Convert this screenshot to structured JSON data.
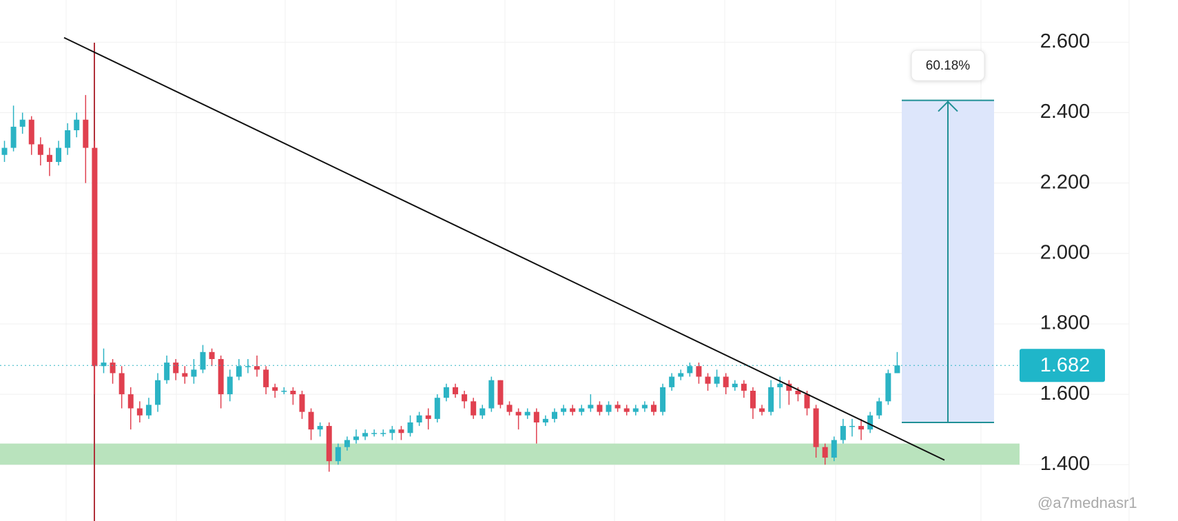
{
  "chart_data": {
    "type": "candlestick",
    "up_color": "#2bb3c4",
    "down_color": "#e0404f",
    "open": [
      2.28,
      2.3,
      2.36,
      2.38,
      2.31,
      2.28,
      2.26,
      2.3,
      2.35,
      2.38,
      2.3,
      1.68,
      1.69,
      1.66,
      1.6,
      1.56,
      1.54,
      1.57,
      1.64,
      1.69,
      1.66,
      1.65,
      1.67,
      1.72,
      1.7,
      1.6,
      1.65,
      1.68,
      1.68,
      1.67,
      1.62,
      1.61,
      1.61,
      1.6,
      1.55,
      1.5,
      1.51,
      1.41,
      1.45,
      1.47,
      1.48,
      1.49,
      1.49,
      1.49,
      1.5,
      1.49,
      1.52,
      1.54,
      1.53,
      1.59,
      1.62,
      1.6,
      1.58,
      1.54,
      1.56,
      1.64,
      1.57,
      1.55,
      1.54,
      1.55,
      1.52,
      1.53,
      1.55,
      1.56,
      1.55,
      1.56,
      1.57,
      1.55,
      1.57,
      1.56,
      1.55,
      1.56,
      1.57,
      1.55,
      1.62,
      1.65,
      1.66,
      1.68,
      1.65,
      1.63,
      1.65,
      1.62,
      1.63,
      1.61,
      1.56,
      1.55,
      1.62,
      1.63,
      1.61,
      1.6,
      1.56,
      1.45,
      1.42,
      1.47,
      1.51,
      1.51,
      1.5,
      1.54,
      1.58,
      1.66
    ],
    "high": [
      2.32,
      2.42,
      2.4,
      2.39,
      2.33,
      2.3,
      2.32,
      2.37,
      2.4,
      2.45,
      2.32,
      1.73,
      1.7,
      1.68,
      1.62,
      1.58,
      1.59,
      1.66,
      1.71,
      1.7,
      1.68,
      1.7,
      1.74,
      1.73,
      1.71,
      1.67,
      1.7,
      1.7,
      1.71,
      1.68,
      1.63,
      1.62,
      1.62,
      1.61,
      1.56,
      1.52,
      1.52,
      1.46,
      1.48,
      1.5,
      1.5,
      1.5,
      1.5,
      1.51,
      1.51,
      1.54,
      1.55,
      1.56,
      1.6,
      1.63,
      1.63,
      1.61,
      1.59,
      1.57,
      1.65,
      1.64,
      1.58,
      1.56,
      1.56,
      1.56,
      1.54,
      1.56,
      1.57,
      1.57,
      1.57,
      1.6,
      1.58,
      1.58,
      1.58,
      1.57,
      1.57,
      1.58,
      1.58,
      1.63,
      1.66,
      1.67,
      1.69,
      1.69,
      1.66,
      1.67,
      1.66,
      1.64,
      1.64,
      1.62,
      1.57,
      1.64,
      1.65,
      1.64,
      1.62,
      1.61,
      1.57,
      1.46,
      1.48,
      1.53,
      1.53,
      1.53,
      1.55,
      1.59,
      1.67,
      1.72
    ],
    "low": [
      2.26,
      2.29,
      2.34,
      2.28,
      2.25,
      2.22,
      2.25,
      2.28,
      2.33,
      2.2,
      1.6,
      1.66,
      1.63,
      1.56,
      1.5,
      1.52,
      1.53,
      1.55,
      1.63,
      1.64,
      1.63,
      1.63,
      1.66,
      1.68,
      1.56,
      1.58,
      1.64,
      1.66,
      1.65,
      1.6,
      1.59,
      1.6,
      1.57,
      1.53,
      1.47,
      1.48,
      1.38,
      1.4,
      1.44,
      1.46,
      1.47,
      1.48,
      1.48,
      1.47,
      1.47,
      1.48,
      1.51,
      1.5,
      1.52,
      1.58,
      1.59,
      1.56,
      1.53,
      1.53,
      1.55,
      1.56,
      1.54,
      1.5,
      1.53,
      1.46,
      1.51,
      1.52,
      1.54,
      1.54,
      1.54,
      1.55,
      1.54,
      1.54,
      1.55,
      1.54,
      1.54,
      1.55,
      1.54,
      1.54,
      1.61,
      1.64,
      1.65,
      1.63,
      1.61,
      1.62,
      1.6,
      1.61,
      1.59,
      1.53,
      1.54,
      1.54,
      1.56,
      1.57,
      1.58,
      1.54,
      1.42,
      1.4,
      1.41,
      1.46,
      1.48,
      1.47,
      1.49,
      1.53,
      1.57,
      1.66
    ],
    "close": [
      2.3,
      2.36,
      2.38,
      2.31,
      2.28,
      2.26,
      2.3,
      2.35,
      2.38,
      2.3,
      1.68,
      1.69,
      1.66,
      1.6,
      1.56,
      1.54,
      1.57,
      1.64,
      1.69,
      1.66,
      1.65,
      1.67,
      1.72,
      1.7,
      1.6,
      1.65,
      1.68,
      1.68,
      1.67,
      1.62,
      1.61,
      1.61,
      1.6,
      1.55,
      1.5,
      1.51,
      1.41,
      1.45,
      1.47,
      1.48,
      1.49,
      1.49,
      1.49,
      1.5,
      1.49,
      1.52,
      1.54,
      1.53,
      1.59,
      1.62,
      1.6,
      1.58,
      1.54,
      1.56,
      1.64,
      1.57,
      1.55,
      1.54,
      1.55,
      1.52,
      1.53,
      1.55,
      1.56,
      1.55,
      1.56,
      1.57,
      1.55,
      1.57,
      1.56,
      1.55,
      1.56,
      1.57,
      1.55,
      1.62,
      1.65,
      1.66,
      1.68,
      1.65,
      1.63,
      1.65,
      1.62,
      1.63,
      1.61,
      1.56,
      1.55,
      1.62,
      1.63,
      1.61,
      1.6,
      1.56,
      1.45,
      1.42,
      1.47,
      1.51,
      1.51,
      1.5,
      1.54,
      1.58,
      1.66,
      1.682
    ],
    "ylim": [
      1.24,
      2.72
    ],
    "yticks": [
      {
        "value": 1.4,
        "label": "1.400"
      },
      {
        "value": 1.6,
        "label": "1.600"
      },
      {
        "value": 1.8,
        "label": "1.800"
      },
      {
        "value": 2.0,
        "label": "2.000"
      },
      {
        "value": 2.2,
        "label": "2.200"
      },
      {
        "value": 2.4,
        "label": "2.400"
      },
      {
        "value": 2.6,
        "label": "2.600"
      }
    ],
    "grid": true,
    "last_price": 1.682,
    "support_zone": [
      1.4,
      1.46
    ],
    "trendline": {
      "start": 2.613,
      "end": 1.413
    },
    "measure": {
      "from": 1.52,
      "to": 2.435,
      "label": "60.18%"
    },
    "watermark": "@a7mednasr1"
  }
}
